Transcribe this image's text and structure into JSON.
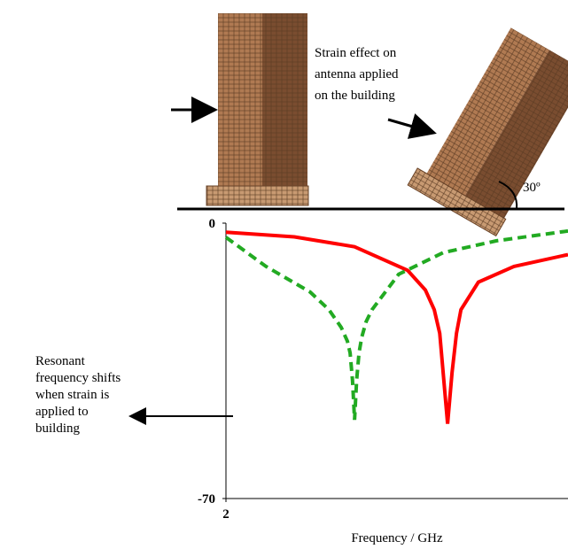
{
  "chart_data": {
    "type": "line",
    "annotations": {
      "strain": [
        "Strain effect on",
        "antenna applied",
        "on the building"
      ],
      "angle": "30º",
      "shift": [
        "Resonant",
        "frequency shifts",
        "when strain is",
        "applied to",
        "building"
      ]
    },
    "xlabel": "Frequency / GHz",
    "xlim": [
      2,
      3
    ],
    "xticks": [
      2
    ],
    "ylim": [
      -70,
      0
    ],
    "yticks": [
      0,
      -70
    ],
    "series": [
      {
        "color": "#ff0000",
        "dash": false,
        "x": [
          2,
          2.2,
          2.376,
          2.531,
          2.583,
          2.609,
          2.625,
          2.635,
          2.642,
          2.648,
          2.654,
          2.661,
          2.674,
          2.687,
          2.738,
          2.842,
          3
        ],
        "values": [
          -2.3,
          -3.5,
          -6,
          -12,
          -17,
          -22,
          -28,
          -38,
          -45,
          -51,
          -45,
          -38,
          -28,
          -22,
          -15,
          -11,
          -8
        ]
      },
      {
        "color": "#22aa22",
        "dash": true,
        "x": [
          2,
          2.117,
          2.246,
          2.301,
          2.337,
          2.355,
          2.363,
          2.37,
          2.376,
          2.382,
          2.389,
          2.397,
          2.41,
          2.427,
          2.505,
          2.635,
          2.79,
          3
        ],
        "values": [
          -3.6,
          -11,
          -17.5,
          -22,
          -26.5,
          -30,
          -33,
          -40,
          -50,
          -40,
          -33,
          -29,
          -25,
          -22,
          -13,
          -7.5,
          -4.5,
          -2
        ]
      }
    ]
  }
}
